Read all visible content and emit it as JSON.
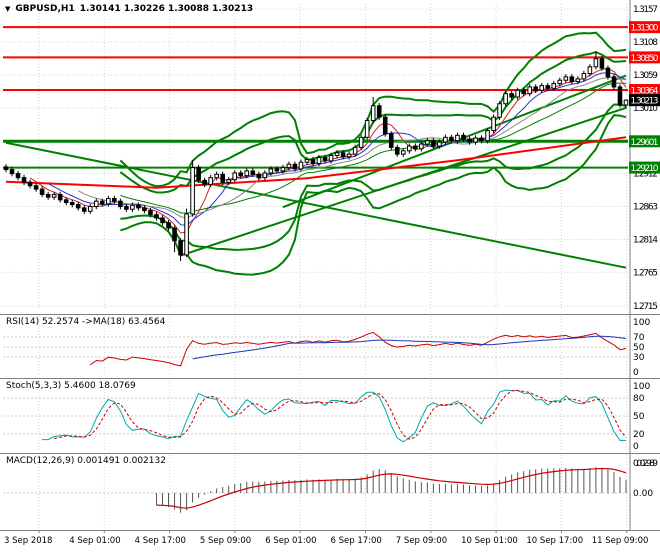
{
  "colors": {
    "background": "#ffffff",
    "grid": "#d4d4d4",
    "panel_grid": "#c8c8c8",
    "separator": "#808080",
    "axis_line": "#808080",
    "axis_text": "#000000",
    "candle_outline": "#000000",
    "bull_fill": "#ffffff",
    "bear_fill": "#000000",
    "band_green": "#008000",
    "level_red": "#ff0000",
    "level_green": "#008000",
    "long_ma_red": "#ff0000",
    "current_price_bg": "#000000",
    "label_text": "#ffffff"
  },
  "main_chart": {
    "symbol_label": "GBPUSD,H1",
    "ohlc_text": "1.30141 1.30226 1.30088 1.30213",
    "current_price": "1.30213",
    "y_ticks": [
      "1.3157",
      "1.3108",
      "1.3059",
      "1.3010",
      "1.2961",
      "1.2912",
      "1.2863",
      "1.2814",
      "1.2765",
      "1.2715"
    ],
    "levels": [
      {
        "label": "1.31300",
        "value": 1.313,
        "color": "#ff0000",
        "width": 2
      },
      {
        "label": "1.30850",
        "value": 1.3085,
        "color": "#ff0000",
        "width": 2
      },
      {
        "label": "1.30364",
        "value": 1.30364,
        "color": "#ff0000",
        "width": 2
      },
      {
        "label": "1.29601",
        "value": 1.29601,
        "color": "#008000",
        "width": 3
      },
      {
        "label": "1.29210",
        "value": 1.2921,
        "color": "#008000",
        "width": 2
      }
    ]
  },
  "chart_data": {
    "type": "candlestick",
    "instrument": "GBPUSD",
    "timeframe": "H1",
    "x_labels": [
      "3 Sep 2018",
      "4 Sep 01:00",
      "4 Sep 17:00",
      "5 Sep 09:00",
      "6 Sep 01:00",
      "6 Sep 17:00",
      "7 Sep 09:00",
      "10 Sep 01:00",
      "10 Sep 17:00",
      "11 Sep 09:00"
    ],
    "y_axis": {
      "top_value": 1.3157,
      "bottom_value": 1.2715
    },
    "last_candle_ohlc": [
      1.30141,
      1.30226,
      1.30088,
      1.30213
    ],
    "price": {
      "first_open": 1.2922,
      "default_wick": 0.0004,
      "closes": [
        1.2918,
        1.2912,
        1.2906,
        1.2899,
        1.2894,
        1.2889,
        1.2881,
        1.2877,
        1.2881,
        1.2873,
        1.2869,
        1.2866,
        1.2861,
        1.2856,
        1.2863,
        1.2871,
        1.2867,
        1.2875,
        1.2871,
        1.2863,
        1.2859,
        1.2865,
        1.2861,
        1.2857,
        1.2851,
        1.2846,
        1.2839,
        1.2831,
        1.2812,
        1.2791,
        1.2852,
        1.2921,
        1.2902,
        1.2896,
        1.2906,
        1.2911,
        1.2899,
        1.2903,
        1.2913,
        1.2909,
        1.2916,
        1.2911,
        1.2906,
        1.2913,
        1.2919,
        1.2916,
        1.2921,
        1.2926,
        1.2919,
        1.2929,
        1.2933,
        1.2927,
        1.2936,
        1.2931,
        1.2939,
        1.2943,
        1.2937,
        1.2941,
        1.2951,
        1.2966,
        1.2991,
        1.3013,
        1.2996,
        1.2971,
        1.2951,
        1.2941,
        1.2946,
        1.2953,
        1.2949,
        1.2956,
        1.2961,
        1.2953,
        1.2959,
        1.2966,
        1.2961,
        1.2969,
        1.2963,
        1.2959,
        1.2965,
        1.2961,
        1.2976,
        1.2996,
        1.3016,
        1.3031,
        1.3026,
        1.3036,
        1.3031,
        1.3041,
        1.3036,
        1.3043,
        1.3039,
        1.3046,
        1.3051,
        1.3056,
        1.3049,
        1.3053,
        1.3061,
        1.3071,
        1.3083,
        1.3069,
        1.3056,
        1.3041,
        1.30141,
        1.30213
      ],
      "special_wicks": {
        "28": {
          "low": 1.2795
        },
        "29": {
          "low": 1.2782
        },
        "30": {
          "high": 1.286,
          "low": 1.2788
        },
        "31": {
          "high": 1.2932
        },
        "61": {
          "high": 1.3026
        },
        "98": {
          "high": 1.3094
        },
        "103": {
          "high": 1.30226,
          "low": 1.30088
        }
      }
    },
    "overlays": {
      "bollinger": {
        "period": 20,
        "deviations": [
          2,
          3
        ],
        "color": "#008000"
      },
      "ma_ribbon": [
        {
          "period": 5,
          "color": "#cc2222"
        },
        {
          "period": 8,
          "color": "#2233cc"
        },
        {
          "period": 13,
          "color": "#888888"
        }
      ],
      "long_ma": {
        "color": "#ff0000",
        "points": [
          [
            0,
            1.29
          ],
          [
            25,
            1.2891
          ],
          [
            50,
            1.2905
          ],
          [
            75,
            1.2932
          ],
          [
            103,
            1.2966
          ]
        ]
      },
      "trendlines": [
        {
          "color": "#008000",
          "points": [
            [
              0,
              1.2958
            ],
            [
              103,
              1.2772
            ]
          ]
        },
        {
          "color": "#008000",
          "points": [
            [
              29,
              1.279
            ],
            [
              103,
              1.301
            ]
          ]
        },
        {
          "color": "#008000",
          "points": [
            [
              46,
              1.2862
            ],
            [
              103,
              1.3058
            ]
          ]
        }
      ]
    },
    "indicators": {
      "rsi": {
        "label": "RSI(14) 52.2574  ->MA(18) 63.4564",
        "period": 14,
        "ma_period": 18,
        "ticks": [
          100,
          70,
          50,
          30,
          0
        ],
        "line_color": "#cc0000",
        "ma_color": "#2233bb"
      },
      "stoch": {
        "label": "Stoch(5,3,3) 5.4600 18.0769",
        "k": 5,
        "slow": 3,
        "d": 3,
        "ticks": [
          100,
          80,
          50,
          20,
          0
        ],
        "k_color": "#00a8a8",
        "d_color": "#cc0000"
      },
      "macd": {
        "label": "MACD(12,26,9) 0.001491 0.002132",
        "fast": 12,
        "slow": 26,
        "signal": 9,
        "tick_labels": [
          "0.002989",
          "0.00"
        ],
        "tick_values": [
          0.002989,
          0
        ],
        "range": 0.003189,
        "hist_color": "#555555",
        "signal_color": "#cc0000"
      }
    }
  }
}
